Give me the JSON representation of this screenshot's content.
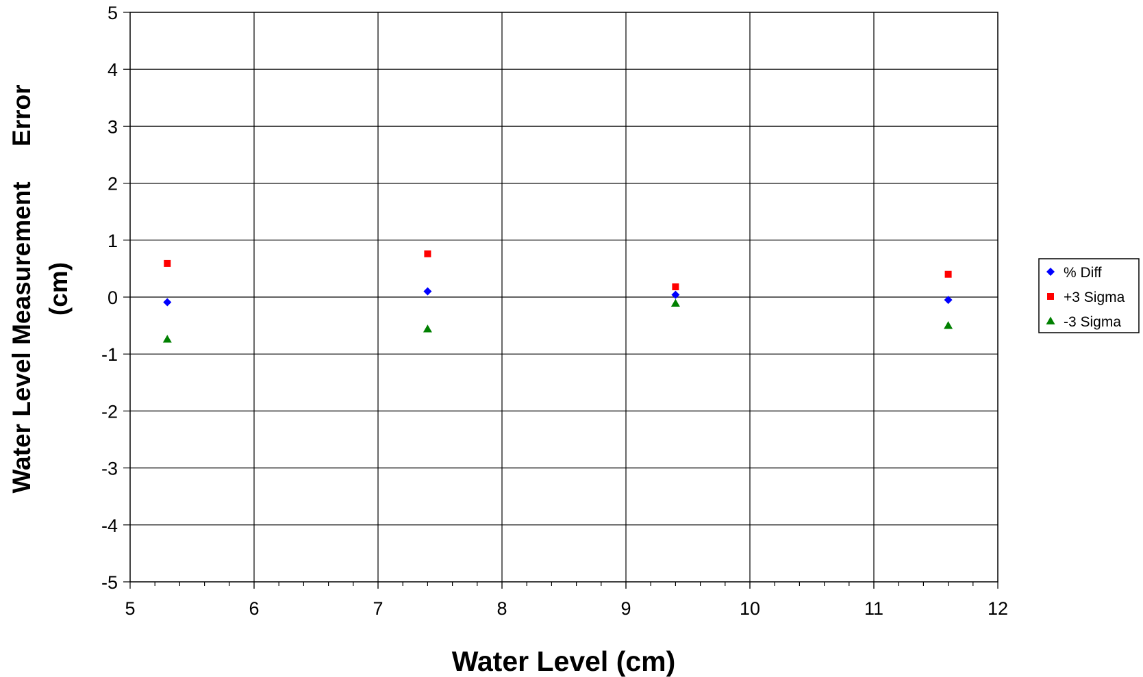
{
  "chart_data": {
    "type": "scatter",
    "title": "",
    "xlabel": "Water Level (cm)",
    "ylabel_line1": "Water Level Measurement     Error",
    "ylabel_line2": "(cm)",
    "xlim": [
      5,
      12
    ],
    "ylim": [
      -5,
      5
    ],
    "x_ticks": [
      5,
      6,
      7,
      8,
      9,
      10,
      11,
      12
    ],
    "y_ticks": [
      5,
      4,
      3,
      2,
      1,
      0,
      -1,
      -2,
      -3,
      -4,
      -5
    ],
    "x_minor_per_major": 5,
    "grid": true,
    "legend_position": "right",
    "series": [
      {
        "name": "% Diff",
        "marker": "diamond",
        "color": "#0000ff",
        "points": [
          [
            5.3,
            -0.09
          ],
          [
            7.4,
            0.1
          ],
          [
            9.4,
            0.04
          ],
          [
            11.6,
            -0.05
          ]
        ]
      },
      {
        "name": "+3 Sigma",
        "marker": "square",
        "color": "#ff0000",
        "points": [
          [
            5.3,
            0.59
          ],
          [
            7.4,
            0.76
          ],
          [
            9.4,
            0.18
          ],
          [
            11.6,
            0.4
          ]
        ]
      },
      {
        "name": "-3 Sigma",
        "marker": "triangle",
        "color": "#008000",
        "points": [
          [
            5.3,
            -0.74
          ],
          [
            7.4,
            -0.56
          ],
          [
            9.4,
            -0.11
          ],
          [
            11.6,
            -0.5
          ]
        ]
      }
    ]
  }
}
